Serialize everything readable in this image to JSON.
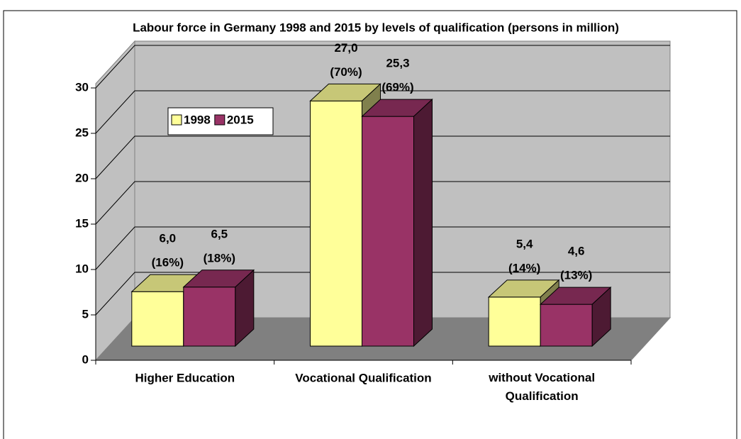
{
  "chart_data": {
    "type": "bar3d",
    "title": "Labour force in Germany 1998 and 2015 by levels of qualification (persons in million)",
    "categories": [
      "Higher Education",
      "Vocational Qualification",
      "without Vocational Qualification"
    ],
    "series": [
      {
        "name": "1998",
        "color": "#ffff99",
        "values": [
          6.0,
          27.0,
          5.4
        ],
        "value_labels": [
          "6,0",
          "27,0",
          "5,4"
        ],
        "share_labels": [
          "(16%)",
          "(70%)",
          "(14%)"
        ]
      },
      {
        "name": "2015",
        "color": "#993366",
        "values": [
          6.5,
          25.3,
          4.6
        ],
        "value_labels": [
          "6,5",
          "25,3",
          "4,6"
        ],
        "share_labels": [
          "(18%)",
          "(69%)",
          "(13%)"
        ]
      }
    ],
    "ylim": [
      0,
      30
    ],
    "yticks": [
      0,
      5,
      10,
      15,
      20,
      25,
      30
    ],
    "grid": true,
    "legend": "top-left"
  }
}
